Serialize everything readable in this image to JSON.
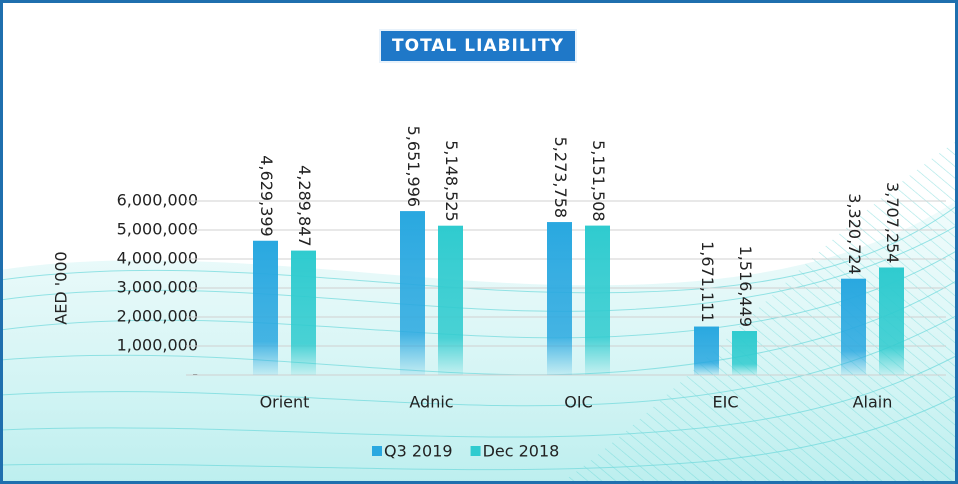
{
  "chart_data": {
    "type": "bar",
    "title": "TOTAL LIABILITY",
    "y_label": "AED '000",
    "categories": [
      "Orient",
      "Adnic",
      "OIC",
      "EIC",
      "Alain"
    ],
    "series": [
      {
        "name": "Q3 2019",
        "color": "#29a8e0",
        "values": [
          4629399,
          5651996,
          5273758,
          1671111,
          3320724
        ],
        "value_labels": [
          "4,629,399",
          "5,651,996",
          "5,273,758",
          "1,671,111",
          "3,320,724"
        ]
      },
      {
        "name": "Dec 2018",
        "color": "#2fcbcf",
        "values": [
          4289847,
          5148525,
          5151508,
          1516449,
          3707254
        ],
        "value_labels": [
          "4,289,847",
          "5,148,525",
          "5,151,508",
          "1,516,449",
          "3,707,254"
        ]
      }
    ],
    "ylim": [
      0,
      6000000
    ],
    "yticks": [
      {
        "value": 0,
        "label": "-"
      },
      {
        "value": 1000000,
        "label": "1,000,000"
      },
      {
        "value": 2000000,
        "label": "2,000,000"
      },
      {
        "value": 3000000,
        "label": "3,000,000"
      },
      {
        "value": 4000000,
        "label": "4,000,000"
      },
      {
        "value": 5000000,
        "label": "5,000,000"
      },
      {
        "value": 6000000,
        "label": "6,000,000"
      }
    ],
    "grid": true,
    "legend": "bottom"
  }
}
